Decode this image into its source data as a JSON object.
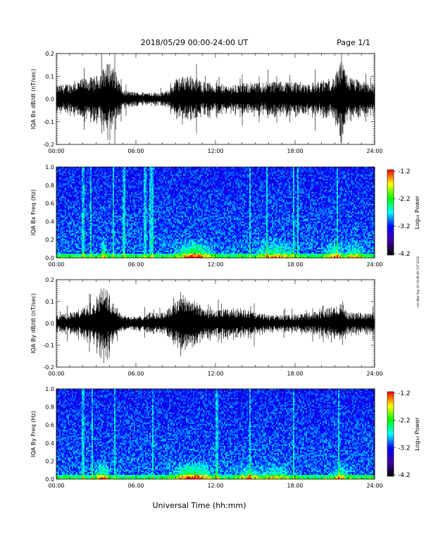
{
  "header": {
    "title": "2018/05/29  00:00-24:00 UT",
    "page": "Page 1/1"
  },
  "footer": {
    "xlabel": "Universal Time (hh:mm)",
    "side_note": "mh Wed Sep 19 19:08:49 CUT 2018"
  },
  "colorbar": {
    "label": "Log₁₀ Power",
    "ticks": [
      "-1.2",
      "-2.2",
      "-3.2",
      "-4.2"
    ],
    "colors": [
      "#ff0000",
      "#ffff00",
      "#00ff00",
      "#00ffff",
      "#0000ff",
      "#3a00a0",
      "#000000"
    ]
  },
  "chart_data": [
    {
      "type": "line",
      "ylabel": "IQA Bx dB/dt (nT/sec)",
      "ylim": [
        -0.2,
        0.2
      ],
      "xlim": [
        0,
        24
      ],
      "x_ticks": [
        "00:00",
        "06:00",
        "12:00",
        "18:00",
        "24:00"
      ],
      "y_ticks": [
        "0.2",
        "0.1",
        "0.0",
        "-0.1",
        "-0.2"
      ],
      "envelope": {
        "x_hours": [
          0,
          1,
          2,
          3,
          4,
          4.5,
          5,
          6,
          7,
          8,
          8.5,
          9,
          10,
          11,
          12,
          13,
          14,
          15,
          16,
          17,
          18,
          19,
          20,
          21,
          21.5,
          22,
          23,
          24
        ],
        "amplitude": [
          0.06,
          0.07,
          0.09,
          0.1,
          0.17,
          0.12,
          0.04,
          0.03,
          0.03,
          0.03,
          0.04,
          0.09,
          0.11,
          0.08,
          0.07,
          0.06,
          0.07,
          0.07,
          0.08,
          0.08,
          0.08,
          0.07,
          0.08,
          0.1,
          0.17,
          0.1,
          0.08,
          0.07
        ]
      }
    },
    {
      "type": "heatmap",
      "ylabel": "IQA Bx Freq (Hz)",
      "ylim": [
        0,
        1.0
      ],
      "xlim": [
        0,
        24
      ],
      "x_ticks": [
        "00:00",
        "06:00",
        "12:00",
        "18:00",
        "24:00"
      ],
      "y_ticks": [
        "1.0",
        "0.8",
        "0.6",
        "0.4",
        "0.2",
        "0.0"
      ],
      "value_range": [
        -4.2,
        -1.2
      ]
    },
    {
      "type": "line",
      "ylabel": "IQA By dB/dt (nT/sec)",
      "ylim": [
        -0.2,
        0.2
      ],
      "xlim": [
        0,
        24
      ],
      "x_ticks": [
        "00:00",
        "06:00",
        "12:00",
        "18:00",
        "24:00"
      ],
      "y_ticks": [
        "0.2",
        "0.1",
        "0.0",
        "-0.1",
        "-0.2"
      ],
      "envelope": {
        "x_hours": [
          0,
          1,
          2,
          3,
          3.5,
          4,
          4.5,
          5,
          6,
          7,
          8,
          9,
          9.5,
          10,
          11,
          12,
          13,
          14,
          15,
          16,
          17,
          18,
          19,
          20,
          21,
          21.5,
          22,
          23,
          24
        ],
        "amplitude": [
          0.04,
          0.05,
          0.07,
          0.12,
          0.18,
          0.14,
          0.08,
          0.04,
          0.03,
          0.05,
          0.05,
          0.1,
          0.15,
          0.12,
          0.08,
          0.06,
          0.07,
          0.07,
          0.05,
          0.04,
          0.04,
          0.04,
          0.05,
          0.06,
          0.08,
          0.1,
          0.05,
          0.05,
          0.05
        ]
      }
    },
    {
      "type": "heatmap",
      "ylabel": "IQA By Freq (Hz)",
      "ylim": [
        0,
        1.0
      ],
      "xlim": [
        0,
        24
      ],
      "x_ticks": [
        "00:00",
        "06:00",
        "12:00",
        "18:00",
        "24:00"
      ],
      "y_ticks": [
        "1.0",
        "0.8",
        "0.6",
        "0.4",
        "0.2",
        "0.0"
      ],
      "value_range": [
        -4.2,
        -1.2
      ]
    }
  ]
}
